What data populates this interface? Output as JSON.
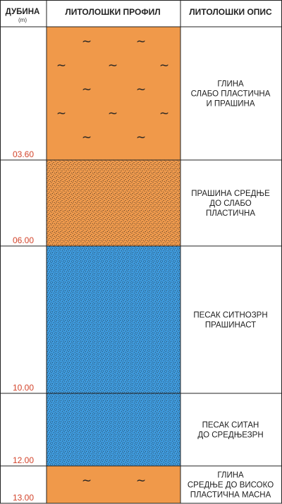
{
  "header": {
    "depth_label": "ДУБИНА",
    "depth_unit": "(m)",
    "profile_label": "ЛИТОЛОШКИ ПРОФИЛ",
    "description_label": "ЛИТОЛОШКИ ОПИС"
  },
  "colors": {
    "clay": "#f0994a",
    "silt": "#ef9a4d",
    "sand": "#3f9bde",
    "depth_text": "#d3442b",
    "border": "#222222"
  },
  "layers": [
    {
      "top": 0.0,
      "bottom": 3.6,
      "depth_label": "03.60",
      "material": "clay",
      "pattern": "waves",
      "description": [
        "ГЛИНА",
        "СЛАБО ПЛАСТИЧНА",
        "И ПРАШИНА"
      ]
    },
    {
      "top": 3.6,
      "bottom": 6.0,
      "depth_label": "06.00",
      "material": "silt",
      "pattern": "dots",
      "description": [
        "ПРАШИНА СРЕДЊЕ",
        "ДО СЛАБО",
        "ПЛАСТИЧНА"
      ]
    },
    {
      "top": 6.0,
      "bottom": 10.0,
      "depth_label": "10.00",
      "material": "sand",
      "pattern": "dots",
      "description": [
        "ПЕСАК СИТНОЗРН",
        "ПРАШИНАСТ"
      ]
    },
    {
      "top": 10.0,
      "bottom": 12.0,
      "depth_label": "12.00",
      "material": "sand",
      "pattern": "dots",
      "description": [
        "ПЕСАК СИТАН",
        "ДО СРЕДЊЕЗРН"
      ]
    },
    {
      "top": 12.0,
      "bottom": 13.0,
      "depth_label": "13.00",
      "material": "clay",
      "pattern": "waves",
      "description": [
        "ГЛИНА",
        "СРЕДЊЕ ДО ВИСОКО",
        "ПЛАСТИЧНА МАСНА"
      ]
    }
  ]
}
